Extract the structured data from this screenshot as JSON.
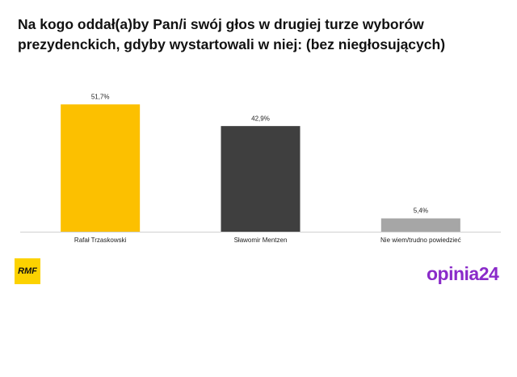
{
  "chart_data": {
    "type": "bar",
    "title": "Na kogo oddał(a)by Pan/i swój głos w drugiej turze wyborów prezydenckich, gdyby wystartowali w niej: (bez niegłosujących)",
    "categories": [
      "Rafał Trzaskowski",
      "Sławomir Mentzen",
      "Nie wiem/trudno powiedzieć"
    ],
    "values": [
      51.7,
      42.9,
      5.4
    ],
    "value_labels": [
      "51,7%",
      "42,9%",
      "5,4%"
    ],
    "colors": [
      "#fcc000",
      "#3f3f3f",
      "#a6a6a6"
    ]
  },
  "logos": {
    "left": "RMF",
    "right": "opinia24"
  }
}
